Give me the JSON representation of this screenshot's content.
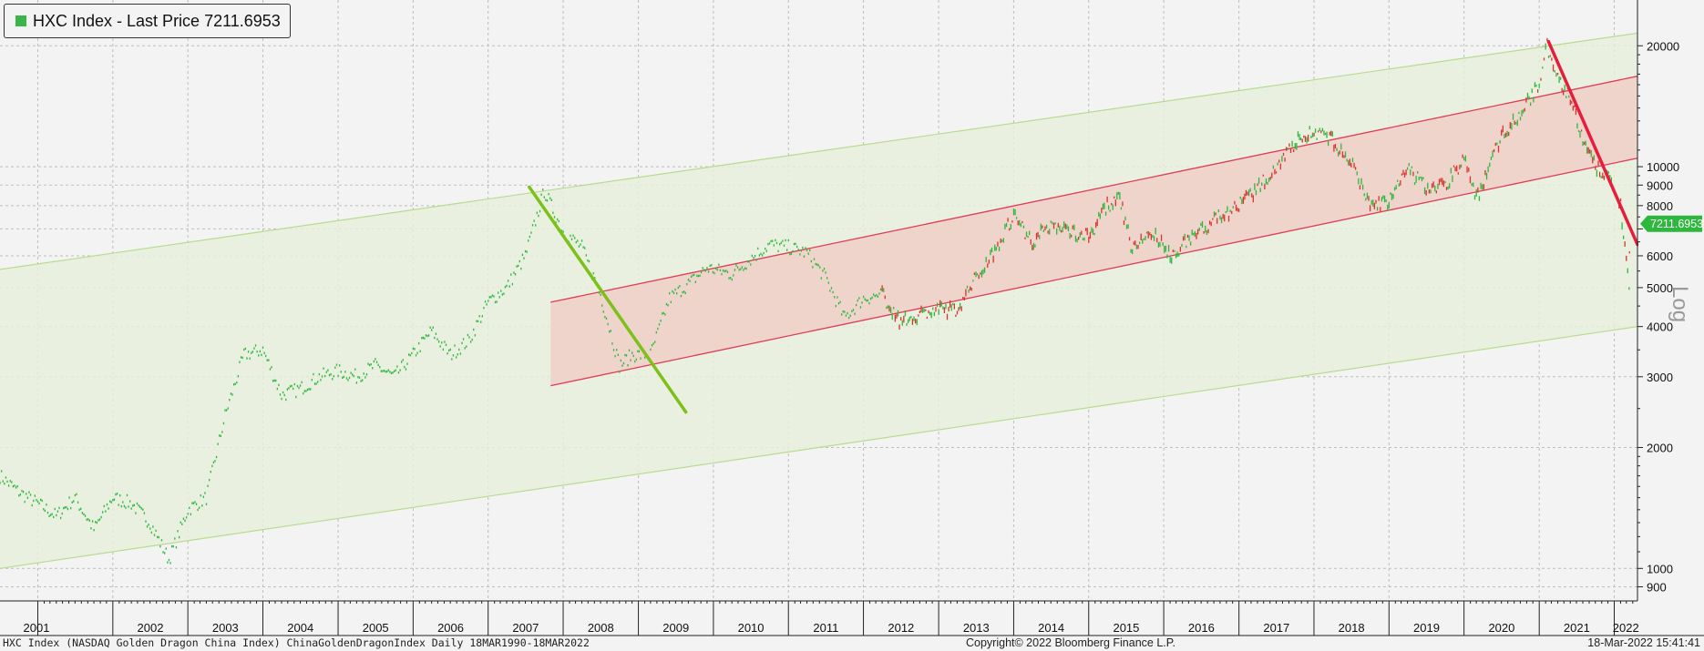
{
  "legend": {
    "label": "HXC Index - Last Price 7211.6953",
    "swatch_color": "#39b54a"
  },
  "footer": {
    "left": "HXC Index (NASDAQ Golden Dragon China Index) ChinaGoldenDragonIndex  Daily 18MAR1990-18MAR2022",
    "center": "Copyright© 2022 Bloomberg Finance L.P.",
    "right": "18-Mar-2022 15:41:41"
  },
  "colors": {
    "up": "#2db83d",
    "down": "#d9342b",
    "outer_channel_fill": "#e6eedc",
    "outer_channel_line": "#b7dc8d",
    "inner_channel_fill": "#f0cfc8",
    "inner_channel_line": "#e23b55",
    "trend_green": "#7cc11a",
    "trend_red": "#e61e3c",
    "last_price_tag": "#2db83d"
  },
  "chart_data": {
    "type": "line",
    "series": [
      {
        "name": "HXC Index - Last Price",
        "x": [
          "2000-07",
          "2000-10",
          "2001-01",
          "2001-04",
          "2001-07",
          "2001-10",
          "2002-01",
          "2002-04",
          "2002-07",
          "2002-10",
          "2003-01",
          "2003-04",
          "2003-07",
          "2003-10",
          "2004-01",
          "2004-04",
          "2004-07",
          "2004-10",
          "2005-01",
          "2005-04",
          "2005-07",
          "2005-10",
          "2006-01",
          "2006-04",
          "2006-07",
          "2006-10",
          "2007-01",
          "2007-04",
          "2007-07",
          "2007-10",
          "2008-01",
          "2008-04",
          "2008-07",
          "2008-10",
          "2008-12",
          "2009-03",
          "2009-06",
          "2009-09",
          "2009-12",
          "2010-04",
          "2010-07",
          "2010-10",
          "2011-01",
          "2011-04",
          "2011-07",
          "2011-10",
          "2012-01",
          "2012-04",
          "2012-07",
          "2012-10",
          "2013-01",
          "2013-04",
          "2013-07",
          "2013-10",
          "2014-01",
          "2014-04",
          "2014-07",
          "2014-10",
          "2015-01",
          "2015-04",
          "2015-06",
          "2015-08",
          "2015-11",
          "2016-02",
          "2016-06",
          "2016-10",
          "2017-01",
          "2017-04",
          "2017-07",
          "2017-10",
          "2018-01",
          "2018-04",
          "2018-07",
          "2018-10",
          "2019-01",
          "2019-04",
          "2019-07",
          "2019-10",
          "2020-01",
          "2020-03",
          "2020-07",
          "2020-10",
          "2021-01",
          "2021-02",
          "2021-04",
          "2021-06",
          "2021-08",
          "2021-10",
          "2022-01",
          "2022-02",
          "2022-03-14",
          "2022-03-18"
        ],
        "y": [
          1700,
          1550,
          1450,
          1350,
          1500,
          1250,
          1500,
          1450,
          1300,
          1050,
          1400,
          1500,
          2400,
          3400,
          3500,
          2700,
          2800,
          3000,
          3100,
          3000,
          3200,
          3000,
          3400,
          3900,
          3400,
          3700,
          4600,
          5000,
          6000,
          8700,
          6900,
          6300,
          4800,
          3200,
          3400,
          3400,
          4700,
          5100,
          5600,
          5400,
          5900,
          6400,
          6300,
          6100,
          5300,
          4200,
          4700,
          4800,
          4100,
          4300,
          4400,
          4400,
          5300,
          6200,
          7600,
          6500,
          7200,
          6900,
          6700,
          8000,
          8300,
          6200,
          6900,
          6000,
          6800,
          7500,
          8000,
          8800,
          10000,
          11500,
          12300,
          11600,
          10200,
          8000,
          8200,
          9800,
          8900,
          9000,
          10500,
          8300,
          12000,
          13500,
          16000,
          20500,
          16500,
          15000,
          11500,
          10000,
          9000,
          8000,
          5000,
          7211.6953
        ]
      }
    ],
    "y_axis": {
      "scale": "log",
      "ticks": [
        900,
        1000,
        2000,
        3000,
        4000,
        5000,
        6000,
        7000,
        8000,
        9000,
        10000,
        20000
      ],
      "tick_labels": [
        "900",
        "1000",
        "2000",
        "3000",
        "4000",
        "5000",
        "6000",
        "",
        "8000",
        "9000",
        "10000",
        "20000"
      ],
      "range": [
        830,
        26000
      ],
      "side": "right",
      "scale_label": "Log"
    },
    "x_axis": {
      "range": [
        "2000-07-01",
        "2022-04-24"
      ],
      "year_labels": [
        "2001",
        "2002",
        "2003",
        "2004",
        "2005",
        "2006",
        "2007",
        "2008",
        "2009",
        "2010",
        "2011",
        "2012",
        "2013",
        "2014",
        "2015",
        "2016",
        "2017",
        "2018",
        "2019",
        "2020",
        "2021",
        "2022"
      ]
    },
    "last_price": 7211.6953,
    "last_price_label": "7211.6953",
    "grid": true,
    "annotations": [
      {
        "kind": "channel",
        "name": "outer-green-channel",
        "upper": [
          [
            "2000-07-01",
            5550
          ],
          [
            "2022-04-24",
            21500
          ]
        ],
        "lower": [
          [
            "2000-07-01",
            1000
          ],
          [
            "2022-04-24",
            4000
          ]
        ]
      },
      {
        "kind": "channel",
        "name": "inner-red-channel",
        "upper": [
          [
            "2007-11-01",
            4600
          ],
          [
            "2022-04-24",
            16800
          ]
        ],
        "lower": [
          [
            "2007-11-01",
            2850
          ],
          [
            "2022-04-24",
            10500
          ]
        ]
      },
      {
        "kind": "trendline",
        "name": "green-downtrend-2007",
        "points": [
          [
            "2007-07-20",
            8900
          ],
          [
            "2009-08-20",
            2450
          ]
        ]
      },
      {
        "kind": "trendline",
        "name": "red-downtrend-2021",
        "points": [
          [
            "2021-02-15",
            20500
          ],
          [
            "2022-04-24",
            6400
          ]
        ]
      }
    ]
  }
}
